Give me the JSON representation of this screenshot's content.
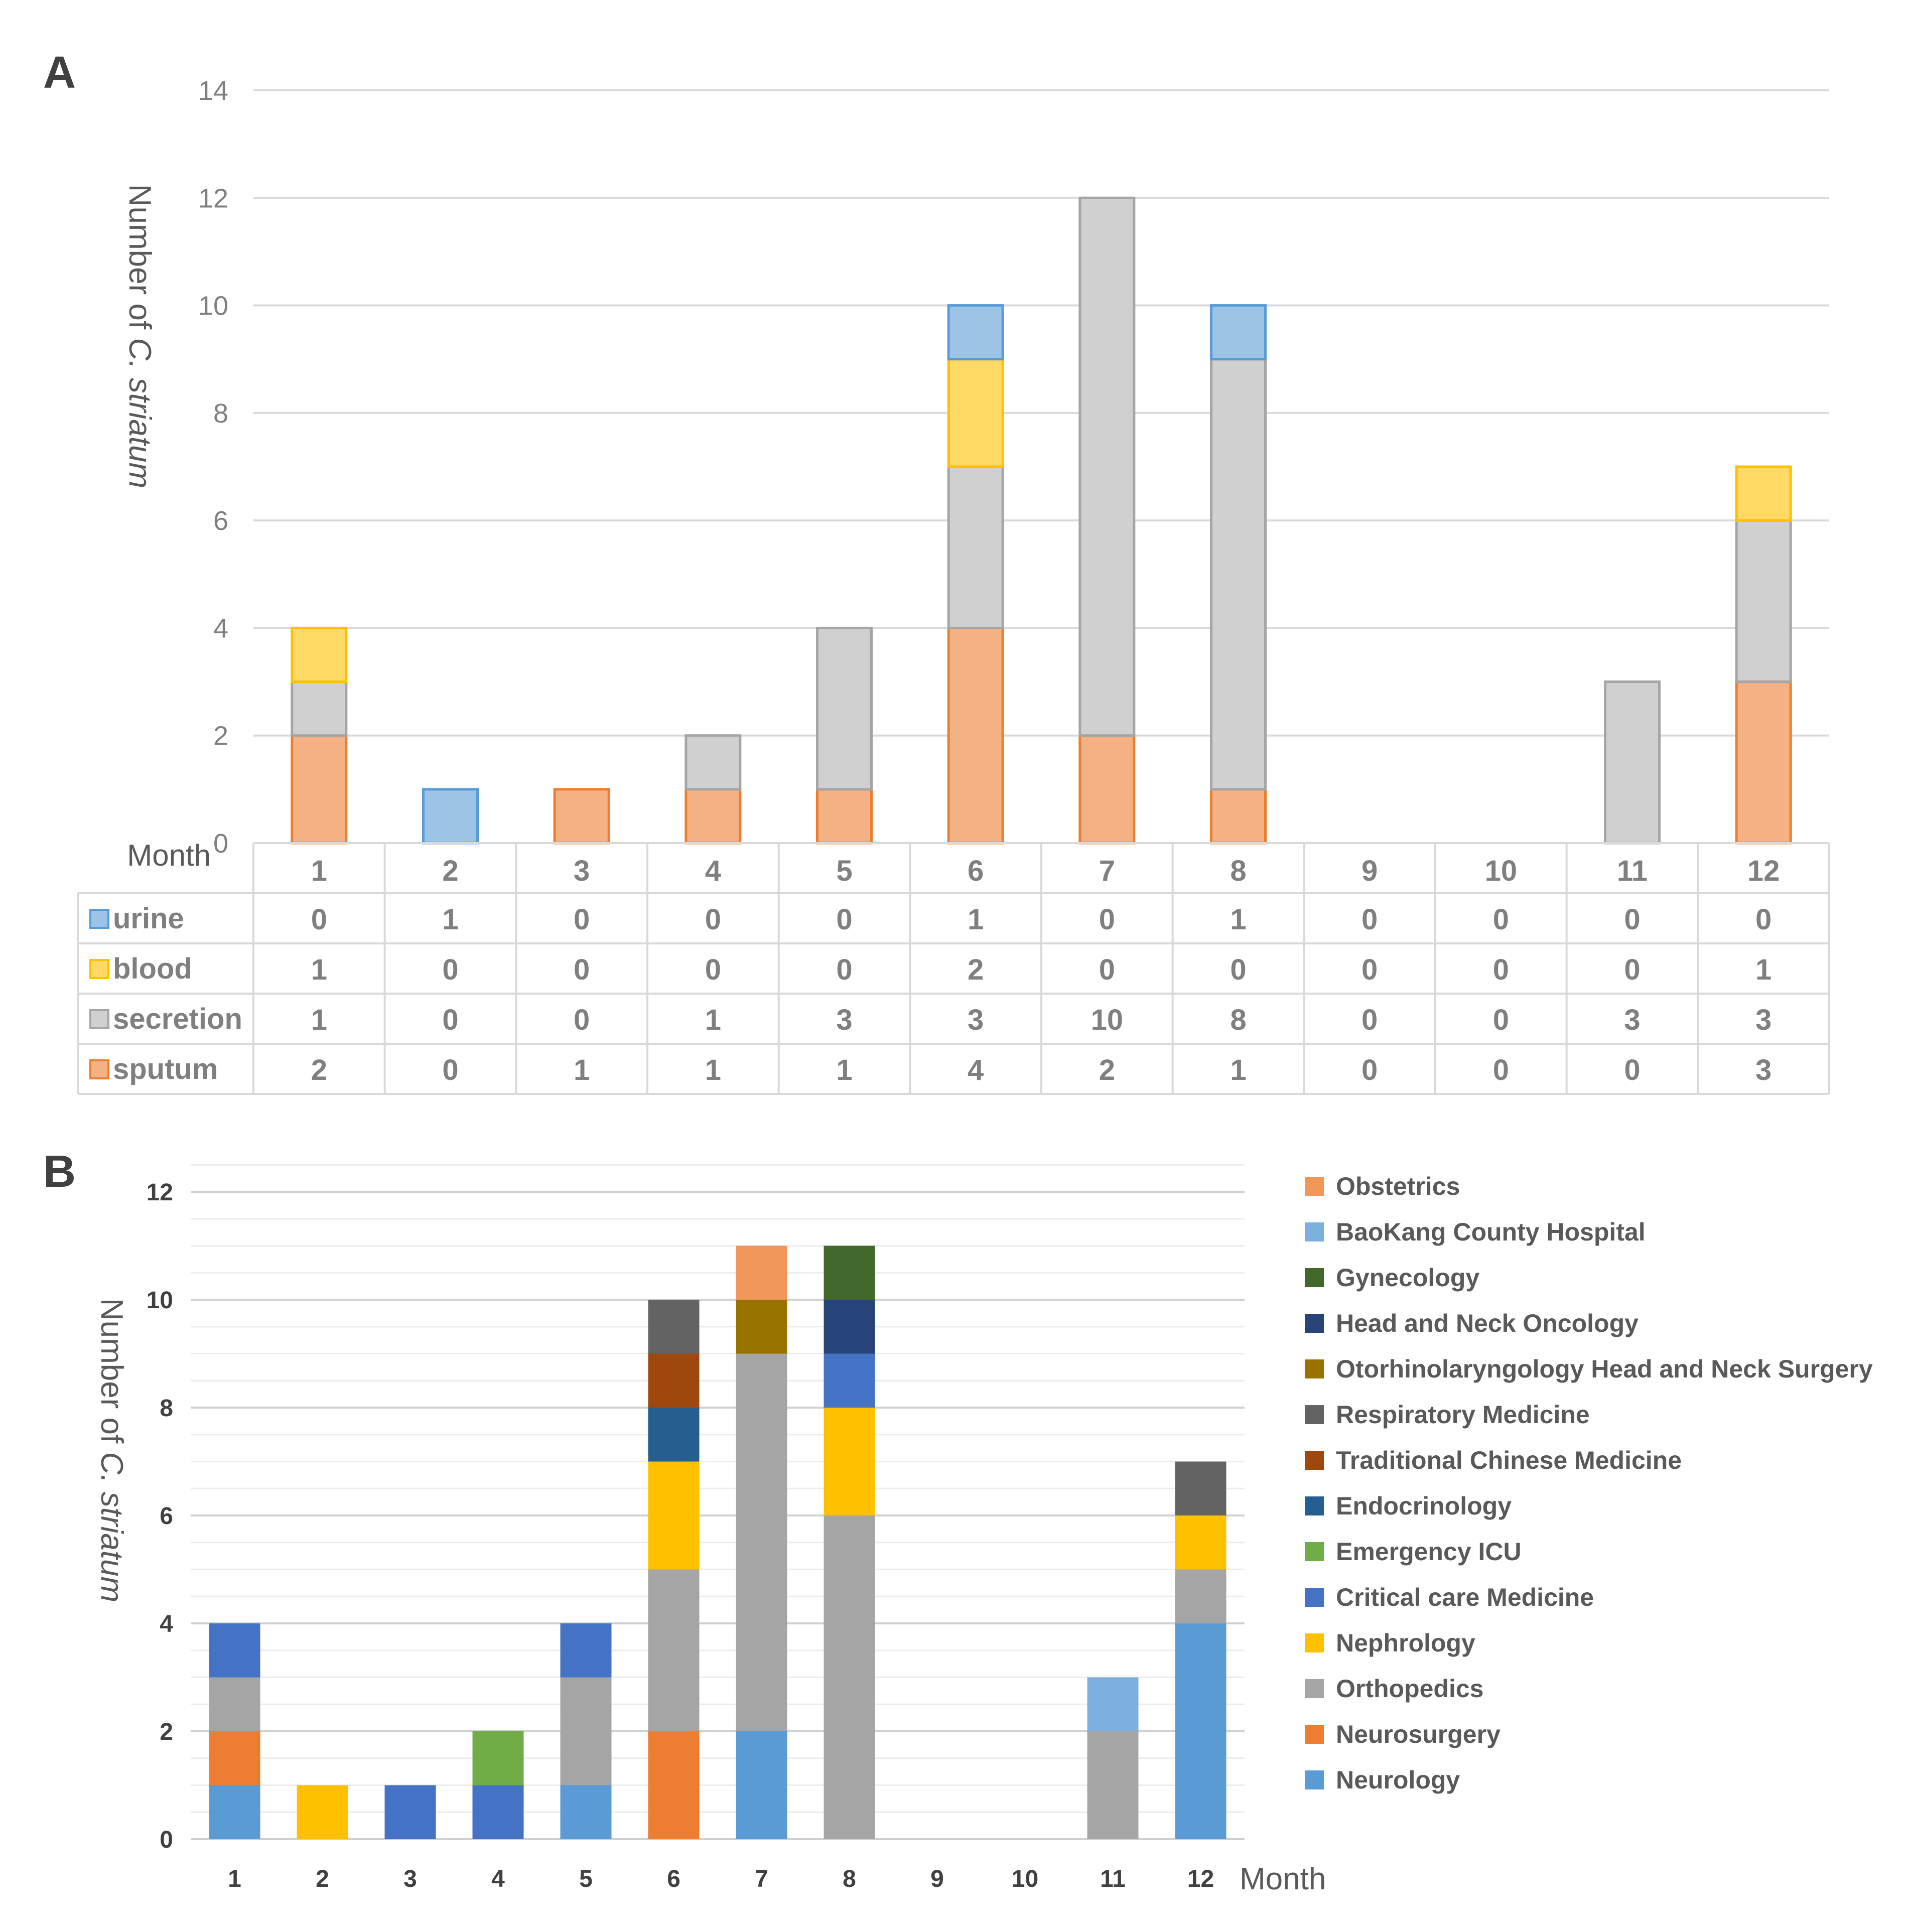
{
  "panel_a": {
    "label": "A",
    "title_month": "Month",
    "chart_data": {
      "type": "bar",
      "stacked": true,
      "categories": [
        "1",
        "2",
        "3",
        "4",
        "5",
        "6",
        "7",
        "8",
        "9",
        "10",
        "11",
        "12"
      ],
      "series": [
        {
          "name": "sputum",
          "values": [
            2,
            0,
            1,
            1,
            1,
            4,
            2,
            1,
            0,
            0,
            0,
            3
          ],
          "color": "#f4b183",
          "stroke": "#ed7d31"
        },
        {
          "name": "secretion",
          "values": [
            1,
            0,
            0,
            1,
            3,
            3,
            10,
            8,
            0,
            0,
            3,
            3
          ],
          "color": "#d0d0d0",
          "stroke": "#a5a5a5"
        },
        {
          "name": "blood",
          "values": [
            1,
            0,
            0,
            0,
            0,
            2,
            0,
            0,
            0,
            0,
            0,
            1
          ],
          "color": "#ffd966",
          "stroke": "#ffc000"
        },
        {
          "name": "urine",
          "values": [
            0,
            1,
            0,
            0,
            0,
            1,
            0,
            1,
            0,
            0,
            0,
            0
          ],
          "color": "#9dc3e6",
          "stroke": "#5b9bd5"
        }
      ],
      "table_rows": [
        "urine",
        "blood",
        "secretion",
        "sputum"
      ],
      "xlabel": "Month",
      "ylabel_prefix": "Number of ",
      "ylabel_italic": "C. striatum",
      "ylim": [
        0,
        14
      ],
      "yticks": [
        0,
        2,
        4,
        6,
        8,
        10,
        12,
        14
      ],
      "grid": true,
      "legend": "data table"
    }
  },
  "panel_b": {
    "label": "B",
    "chart_data": {
      "type": "bar",
      "stacked": true,
      "categories": [
        "1",
        "2",
        "3",
        "4",
        "5",
        "6",
        "7",
        "8",
        "9",
        "10",
        "11",
        "12"
      ],
      "series": [
        {
          "name": "Neurology",
          "values": [
            1,
            0,
            0,
            0,
            1,
            0,
            2,
            0,
            0,
            0,
            0,
            4
          ],
          "color": "#5b9bd5"
        },
        {
          "name": "Neurosurgery",
          "values": [
            1,
            0,
            0,
            0,
            0,
            2,
            0,
            0,
            0,
            0,
            0,
            0
          ],
          "color": "#ed7d31"
        },
        {
          "name": "Orthopedics",
          "values": [
            1,
            0,
            0,
            0,
            2,
            3,
            7,
            6,
            0,
            0,
            2,
            1
          ],
          "color": "#a5a5a5"
        },
        {
          "name": "Nephrology",
          "values": [
            0,
            1,
            0,
            0,
            0,
            2,
            0,
            2,
            0,
            0,
            0,
            1
          ],
          "color": "#ffc000"
        },
        {
          "name": "Critical care Medicine",
          "values": [
            1,
            0,
            1,
            1,
            1,
            0,
            0,
            1,
            0,
            0,
            0,
            0
          ],
          "color": "#4472c4"
        },
        {
          "name": "Emergency ICU",
          "values": [
            0,
            0,
            0,
            1,
            0,
            0,
            0,
            0,
            0,
            0,
            0,
            0
          ],
          "color": "#70ad47"
        },
        {
          "name": "Endocrinology",
          "values": [
            0,
            0,
            0,
            0,
            0,
            1,
            0,
            0,
            0,
            0,
            0,
            0
          ],
          "color": "#255e91"
        },
        {
          "name": "Traditional Chinese Medicine",
          "values": [
            0,
            0,
            0,
            0,
            0,
            1,
            0,
            0,
            0,
            0,
            0,
            0
          ],
          "color": "#9e480e"
        },
        {
          "name": "Respiratory Medicine",
          "values": [
            0,
            0,
            0,
            0,
            0,
            1,
            0,
            0,
            0,
            0,
            0,
            1
          ],
          "color": "#636363"
        },
        {
          "name": "Otorhinolaryngology Head and Neck Surgery",
          "values": [
            0,
            0,
            0,
            0,
            0,
            0,
            1,
            0,
            0,
            0,
            0,
            0
          ],
          "color": "#997300"
        },
        {
          "name": "Head and Neck Oncology",
          "values": [
            0,
            0,
            0,
            0,
            0,
            0,
            0,
            1,
            0,
            0,
            0,
            0
          ],
          "color": "#264478"
        },
        {
          "name": "Gynecology",
          "values": [
            0,
            0,
            0,
            0,
            0,
            0,
            0,
            1,
            0,
            0,
            0,
            0
          ],
          "color": "#43682b"
        },
        {
          "name": "BaoKang County Hospital",
          "values": [
            0,
            0,
            0,
            0,
            0,
            0,
            0,
            0,
            0,
            0,
            1,
            0
          ],
          "color": "#7cafdd"
        },
        {
          "name": "Obstetrics",
          "values": [
            0,
            0,
            0,
            0,
            0,
            0,
            1,
            0,
            0,
            0,
            0,
            0
          ],
          "color": "#f1975a"
        }
      ],
      "legend_order": [
        "Obstetrics",
        "BaoKang County Hospital",
        "Gynecology",
        "Head and Neck Oncology",
        "Otorhinolaryngology Head and Neck Surgery",
        "Respiratory Medicine",
        "Traditional Chinese Medicine",
        "Endocrinology",
        "Emergency ICU",
        "Critical care Medicine",
        "Nephrology",
        "Orthopedics",
        "Neurosurgery",
        "Neurology"
      ],
      "xlabel": "Month",
      "ylabel_prefix": "Number of ",
      "ylabel_italic": "C. striatum",
      "ylim": [
        0,
        12
      ],
      "yticks": [
        0,
        2,
        4,
        6,
        8,
        10,
        12
      ],
      "grid": true,
      "legend": "right"
    }
  }
}
